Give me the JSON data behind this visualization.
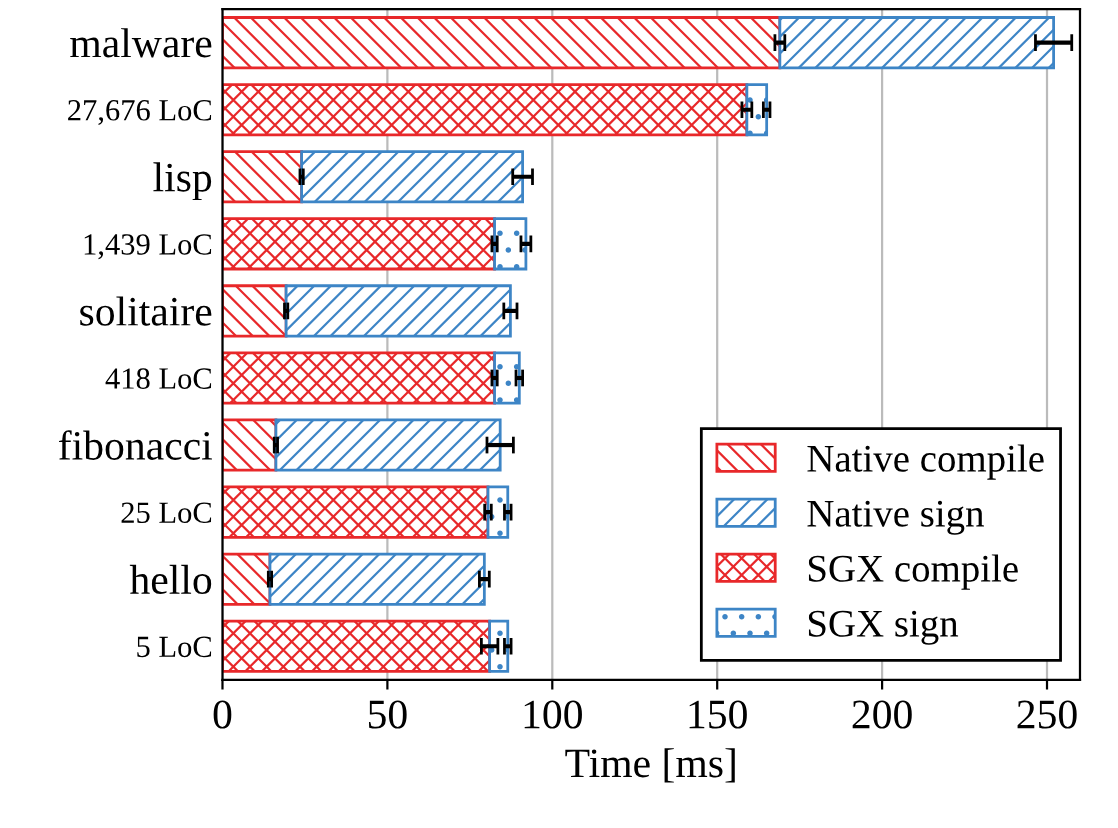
{
  "chart_data": {
    "type": "bar",
    "orientation": "horizontal",
    "stacked": true,
    "xlabel": "Time [ms]",
    "categories": [
      "malware",
      "27,676 LoC",
      "lisp",
      "1,439 LoC",
      "solitaire",
      "418 LoC",
      "fibonacci",
      "25 LoC",
      "hello",
      "5 LoC"
    ],
    "series": [
      {
        "name": "Native compile",
        "color": "#e8282a",
        "values": [
          169,
          null,
          24,
          null,
          19.3,
          null,
          16.2,
          null,
          14.4,
          null
        ],
        "errors": [
          1.5,
          null,
          0.5,
          null,
          0.5,
          null,
          0.5,
          null,
          0.5,
          null
        ]
      },
      {
        "name": "Native sign",
        "color": "#3d85c6",
        "values": [
          83,
          null,
          67,
          null,
          68,
          null,
          68,
          null,
          65,
          null
        ],
        "errors": [
          5.5,
          null,
          3,
          null,
          2,
          null,
          4,
          null,
          1.5,
          null
        ]
      },
      {
        "name": "SGX compile",
        "color": "#e8282a",
        "values": [
          null,
          159,
          null,
          82.5,
          null,
          82.5,
          null,
          80.5,
          null,
          81
        ],
        "errors": [
          null,
          1.5,
          null,
          0.8,
          null,
          0.8,
          null,
          1,
          null,
          2.5
        ]
      },
      {
        "name": "SGX sign",
        "color": "#3d85c6",
        "values": [
          null,
          6,
          null,
          9.5,
          null,
          7.5,
          null,
          6,
          null,
          5.5
        ],
        "errors": [
          null,
          1,
          null,
          1.5,
          null,
          1,
          null,
          1,
          null,
          1
        ]
      }
    ],
    "xlim": [
      0,
      260
    ],
    "xticks": [
      0,
      50,
      100,
      150,
      200,
      250
    ],
    "grid": "x",
    "legend": "bottom right"
  }
}
